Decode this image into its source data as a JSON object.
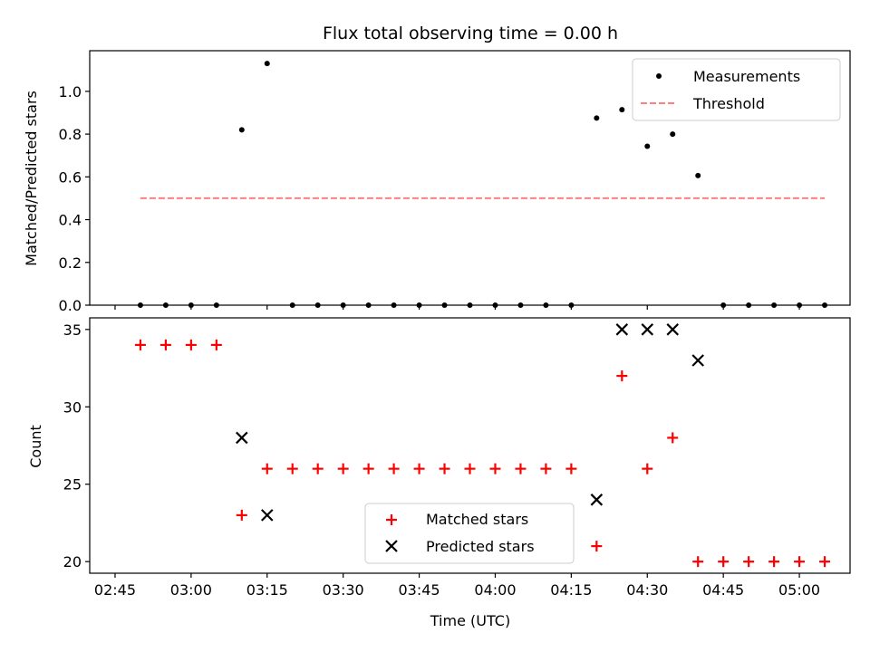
{
  "title": "Flux total observing time = 0.00 h",
  "chart_data": [
    {
      "type": "scatter",
      "ylabel": "Matched/Predicted stars",
      "xlabel": "",
      "ylim": [
        0,
        1.19
      ],
      "y_ticks": [
        0.0,
        0.2,
        0.4,
        0.6,
        0.8,
        1.0
      ],
      "y_tick_labels": [
        "0.0",
        "0.2",
        "0.4",
        "0.6",
        "0.8",
        "1.0"
      ],
      "legend_position": "top-right",
      "series": [
        {
          "name": "Measurements",
          "marker": "dot",
          "color": "#000000",
          "x": [
            "02:50",
            "02:55",
            "03:00",
            "03:05",
            "03:10",
            "03:15",
            "03:20",
            "03:25",
            "03:30",
            "03:35",
            "03:40",
            "03:45",
            "03:50",
            "03:55",
            "04:00",
            "04:05",
            "04:10",
            "04:15",
            "04:20",
            "04:25",
            "04:30",
            "04:35",
            "04:40",
            "04:45",
            "04:50",
            "04:55",
            "05:00",
            "05:05"
          ],
          "y": [
            0,
            0,
            0,
            0,
            0.82,
            1.13,
            0,
            0,
            0,
            0,
            0,
            0,
            0,
            0,
            0,
            0,
            0,
            0,
            0.875,
            0.914,
            0.743,
            0.8,
            0.606,
            0,
            0,
            0,
            0,
            0
          ]
        },
        {
          "name": "Threshold",
          "marker": "dashed-line",
          "color": "#ff7f7f",
          "x": [
            "02:50",
            "05:05"
          ],
          "y": [
            0.5,
            0.5
          ]
        }
      ]
    },
    {
      "type": "scatter",
      "ylabel": "Count",
      "xlabel": "Time (UTC)",
      "ylim": [
        19.25,
        35.75
      ],
      "y_ticks": [
        20,
        25,
        30,
        35
      ],
      "y_tick_labels": [
        "20",
        "25",
        "30",
        "35"
      ],
      "x_ticks": [
        "02:45",
        "03:00",
        "03:15",
        "03:30",
        "03:45",
        "04:00",
        "04:15",
        "04:30",
        "04:45",
        "05:00"
      ],
      "x_range": [
        "02:40",
        "05:10"
      ],
      "legend_position": "lower-center",
      "series": [
        {
          "name": "Matched stars",
          "marker": "plus",
          "color": "#ff0000",
          "x": [
            "02:50",
            "02:55",
            "03:00",
            "03:05",
            "03:10",
            "03:15",
            "03:20",
            "03:25",
            "03:30",
            "03:35",
            "03:40",
            "03:45",
            "03:50",
            "03:55",
            "04:00",
            "04:05",
            "04:10",
            "04:15",
            "04:20",
            "04:25",
            "04:30",
            "04:35",
            "04:40",
            "04:45",
            "04:50",
            "04:55",
            "05:00",
            "05:05"
          ],
          "y": [
            34,
            34,
            34,
            34,
            23,
            26,
            26,
            26,
            26,
            26,
            26,
            26,
            26,
            26,
            26,
            26,
            26,
            26,
            21,
            32,
            26,
            28,
            20,
            20,
            20,
            20,
            20,
            20
          ]
        },
        {
          "name": "Predicted stars",
          "marker": "x",
          "color": "#000000",
          "x": [
            "03:10",
            "03:15",
            "04:20",
            "04:25",
            "04:30",
            "04:35",
            "04:40"
          ],
          "y": [
            28,
            23,
            24,
            35,
            35,
            35,
            33
          ]
        }
      ]
    }
  ]
}
